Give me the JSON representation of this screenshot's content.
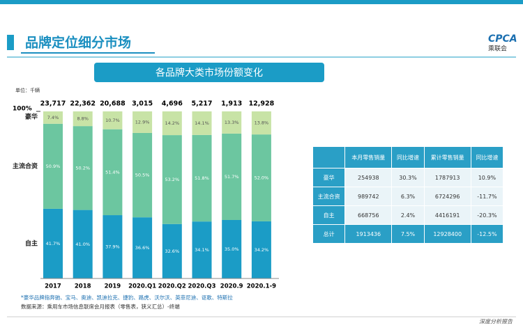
{
  "page_title": "品牌定位细分市场",
  "logo": {
    "mark": "CPCA",
    "name": "乘联会"
  },
  "footer": "深度分析报告",
  "chart_data": {
    "type": "stacked_bar",
    "title": "各品牌大类市场份额变化",
    "unit": "单位：千辆",
    "categories": [
      "2017",
      "2018",
      "2019",
      "2020.Q1",
      "2020.Q2",
      "2020.Q3",
      "2020.9",
      "2020.1-9"
    ],
    "ylim": [
      0,
      100
    ],
    "yticks": [
      {
        "value": 100,
        "label": "100%"
      }
    ],
    "series": [
      {
        "name": "自主",
        "color": "#1b9cc6",
        "values": [
          41.7,
          41.0,
          37.9,
          36.6,
          32.6,
          34.1,
          35.0,
          34.2
        ],
        "value_labels": [
          "41.7%",
          "41.0%",
          "37.9%",
          "36.6%",
          "32.6%",
          "34.1%",
          "35.0%",
          "34.2%"
        ]
      },
      {
        "name": "主流合资",
        "color": "#6cc6a0",
        "values": [
          50.9,
          50.2,
          51.4,
          50.5,
          53.2,
          51.8,
          51.7,
          52.0
        ],
        "value_labels": [
          "50.9%",
          "50.2%",
          "51.4%",
          "50.5%",
          "53.2%",
          "51.8%",
          "51.7%",
          "52.0%"
        ]
      },
      {
        "name": "豪华",
        "color": "#c8e3a6",
        "values": [
          7.4,
          8.8,
          10.7,
          12.9,
          14.2,
          14.1,
          13.3,
          13.8
        ],
        "value_labels": [
          "7.4%",
          "8.8%",
          "10.7%",
          "12.9%",
          "14.2%",
          "14.1%",
          "13.3%",
          "13.8%"
        ]
      }
    ],
    "totals": {
      "values": [
        23717,
        22362,
        20688,
        3015,
        4696,
        5217,
        1913,
        12928
      ],
      "value_labels": [
        "23,717",
        "22,362",
        "20,688",
        "3,015",
        "4,696",
        "5,217",
        "1,913",
        "12,928"
      ]
    },
    "notes": [
      "*豪华品牌指奔驰、宝马、奥迪、凯迪拉克、捷豹、路虎、沃尔沃、英菲尼迪、讴歌、特斯拉",
      "数据来源：乘用车市场信息联席会月报表（零售表，狭义汇总）-终端"
    ]
  },
  "table": {
    "header": [
      "本月零售销量",
      "同比增速",
      "累计零售销量",
      "同比增速"
    ],
    "rows": [
      [
        "豪华",
        254938,
        "30.3%",
        1787913,
        "10.9%"
      ],
      [
        "主流合资",
        989742,
        "6.3%",
        6724296,
        "-11.7%"
      ],
      [
        "自主",
        668756,
        "2.4%",
        4416191,
        "-20.3%"
      ],
      [
        "总计",
        1913436,
        "7.5%",
        12928400,
        "-12.5%"
      ]
    ]
  }
}
